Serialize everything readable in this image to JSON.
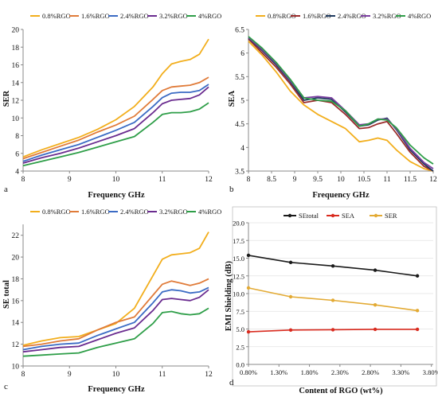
{
  "chart_data": [
    {
      "type": "line",
      "panel_label": "a",
      "xlabel": "Frequency GHz",
      "ylabel": "SER",
      "xlim": [
        8,
        12
      ],
      "ylim": [
        4,
        20
      ],
      "x_ticks": [
        "8",
        "9",
        "10",
        "11",
        "12"
      ],
      "y_ticks": [
        "4",
        "6",
        "8",
        "10",
        "12",
        "14",
        "16",
        "18",
        "20"
      ],
      "legend_position": "top",
      "grid": false,
      "x": [
        8.0,
        8.4,
        8.8,
        9.2,
        9.6,
        10.0,
        10.4,
        10.8,
        11.0,
        11.2,
        11.4,
        11.6,
        11.8,
        12.0
      ],
      "series": [
        {
          "name": "0.8%RGO",
          "color": "#F2AE1C",
          "values": [
            5.6,
            6.4,
            7.1,
            7.8,
            8.7,
            9.8,
            11.3,
            13.5,
            15.0,
            16.1,
            16.4,
            16.6,
            17.2,
            18.9
          ]
        },
        {
          "name": "1.6%RGO",
          "color": "#E07B39",
          "values": [
            5.4,
            6.1,
            6.8,
            7.5,
            8.4,
            9.2,
            10.2,
            12.1,
            13.1,
            13.5,
            13.6,
            13.7,
            14.0,
            14.6
          ]
        },
        {
          "name": "2.4%RGO",
          "color": "#3B6BC4",
          "values": [
            5.1,
            5.8,
            6.4,
            7.0,
            7.8,
            8.6,
            9.5,
            11.3,
            12.3,
            12.8,
            12.9,
            12.9,
            13.1,
            13.8
          ]
        },
        {
          "name": "3.2%RGO",
          "color": "#6A2C8F",
          "values": [
            4.9,
            5.5,
            6.0,
            6.6,
            7.3,
            8.0,
            8.8,
            10.6,
            11.6,
            12.0,
            12.1,
            12.2,
            12.6,
            13.5
          ]
        },
        {
          "name": "4%RGO",
          "color": "#2E9E48",
          "values": [
            4.6,
            5.1,
            5.6,
            6.1,
            6.7,
            7.3,
            7.9,
            9.5,
            10.4,
            10.6,
            10.6,
            10.7,
            11.0,
            11.7
          ]
        }
      ]
    },
    {
      "type": "line",
      "panel_label": "b",
      "xlabel": "Frequency GHz",
      "ylabel": "SEA",
      "xlim": [
        8,
        12
      ],
      "ylim": [
        3.5,
        6.5
      ],
      "x_ticks": [
        "8",
        "8.5",
        "9",
        "9.5",
        "10",
        "10.5",
        "11",
        "11.5",
        "12"
      ],
      "y_ticks": [
        "3.5",
        "4",
        "4.5",
        "5",
        "5.5",
        "6",
        "6.5"
      ],
      "legend_position": "top",
      "grid": false,
      "x": [
        8.0,
        8.3,
        8.6,
        8.9,
        9.2,
        9.5,
        9.8,
        10.1,
        10.4,
        10.6,
        10.8,
        11.0,
        11.2,
        11.5,
        11.8,
        12.0
      ],
      "series": [
        {
          "name": "0.8%RGO",
          "color": "#F2AE1C",
          "values": [
            6.25,
            5.95,
            5.6,
            5.2,
            4.9,
            4.7,
            4.55,
            4.4,
            4.12,
            4.15,
            4.2,
            4.15,
            3.95,
            3.7,
            3.55,
            3.5
          ]
        },
        {
          "name": "1.6%RGO",
          "color": "#9B2C2C",
          "values": [
            6.3,
            6.0,
            5.7,
            5.35,
            4.95,
            5.0,
            4.95,
            4.7,
            4.4,
            4.42,
            4.5,
            4.55,
            4.3,
            3.9,
            3.6,
            3.5
          ]
        },
        {
          "name": "2.4%RGO",
          "color": "#1F3A5F",
          "values": [
            6.32,
            6.05,
            5.75,
            5.4,
            5.0,
            5.05,
            5.02,
            4.75,
            4.45,
            4.48,
            4.58,
            4.62,
            4.38,
            3.95,
            3.65,
            3.5
          ]
        },
        {
          "name": "3.2%RGO",
          "color": "#7B3FA0",
          "values": [
            6.33,
            6.07,
            5.78,
            5.42,
            5.05,
            5.08,
            5.05,
            4.78,
            4.48,
            4.5,
            4.6,
            4.6,
            4.4,
            3.98,
            3.68,
            3.55
          ]
        },
        {
          "name": "4%RGO",
          "color": "#2E9E48",
          "values": [
            6.35,
            6.1,
            5.8,
            5.45,
            5.05,
            5.0,
            4.98,
            4.78,
            4.45,
            4.5,
            4.6,
            4.58,
            4.42,
            4.05,
            3.78,
            3.65
          ]
        }
      ]
    },
    {
      "type": "line",
      "panel_label": "c",
      "xlabel": "Frequency GHz",
      "ylabel": "SE total",
      "xlim": [
        8,
        12
      ],
      "ylim": [
        10,
        23
      ],
      "x_ticks": [
        "8",
        "9",
        "10",
        "11",
        "12"
      ],
      "y_ticks": [
        "10",
        "12",
        "14",
        "16",
        "18",
        "20",
        "22"
      ],
      "legend_position": "top",
      "grid": false,
      "x": [
        8.0,
        8.4,
        8.8,
        9.2,
        9.6,
        10.0,
        10.4,
        10.8,
        11.0,
        11.2,
        11.4,
        11.6,
        11.8,
        12.0
      ],
      "series": [
        {
          "name": "0.8%RGO",
          "color": "#F2AE1C",
          "values": [
            11.9,
            12.3,
            12.6,
            12.7,
            13.3,
            13.9,
            15.3,
            18.3,
            19.8,
            20.2,
            20.3,
            20.4,
            20.8,
            22.3
          ]
        },
        {
          "name": "1.6%RGO",
          "color": "#E07B39",
          "values": [
            11.8,
            12.0,
            12.3,
            12.5,
            13.3,
            14.0,
            14.5,
            16.5,
            17.5,
            17.8,
            17.6,
            17.4,
            17.6,
            18.0
          ]
        },
        {
          "name": "2.4%RGO",
          "color": "#3B6BC4",
          "values": [
            11.5,
            11.8,
            12.0,
            12.1,
            12.8,
            13.4,
            14.0,
            15.8,
            16.8,
            17.0,
            16.9,
            16.7,
            16.8,
            17.2
          ]
        },
        {
          "name": "3.2%RGO",
          "color": "#6A2C8F",
          "values": [
            11.3,
            11.5,
            11.7,
            11.8,
            12.4,
            13.0,
            13.5,
            15.1,
            16.1,
            16.2,
            16.1,
            16.0,
            16.3,
            17.0
          ]
        },
        {
          "name": "4%RGO",
          "color": "#2E9E48",
          "values": [
            10.9,
            11.0,
            11.1,
            11.2,
            11.7,
            12.1,
            12.5,
            13.9,
            14.9,
            15.0,
            14.8,
            14.7,
            14.8,
            15.3
          ]
        }
      ]
    },
    {
      "type": "line",
      "panel_label": "d",
      "xlabel": "Content of RGO (wt%)",
      "ylabel": "EMI Shielding (dB)",
      "xlim": [
        0.8,
        4.3
      ],
      "ylim": [
        0,
        20
      ],
      "x_ticks": [
        "0.80%",
        "1.30%",
        "1.80%",
        "2.30%",
        "2.80%",
        "3.30%",
        "3.80%"
      ],
      "y_ticks": [
        "0.0",
        "2.5",
        "5.0",
        "7.5",
        "10.0",
        "12.5",
        "15.0",
        "17.5",
        "20.0"
      ],
      "legend_position": "top",
      "grid": true,
      "x": [
        0.8,
        1.6,
        2.4,
        3.2,
        4.0
      ],
      "series": [
        {
          "name": "SEtotal",
          "color": "#1A1A1A",
          "values": [
            15.4,
            14.4,
            13.9,
            13.3,
            12.5
          ]
        },
        {
          "name": "SEA",
          "color": "#D92B1F",
          "values": [
            4.6,
            4.85,
            4.9,
            4.95,
            4.95
          ]
        },
        {
          "name": "SER",
          "color": "#E3AA33",
          "values": [
            10.8,
            9.55,
            9.05,
            8.4,
            7.6
          ]
        }
      ]
    }
  ]
}
